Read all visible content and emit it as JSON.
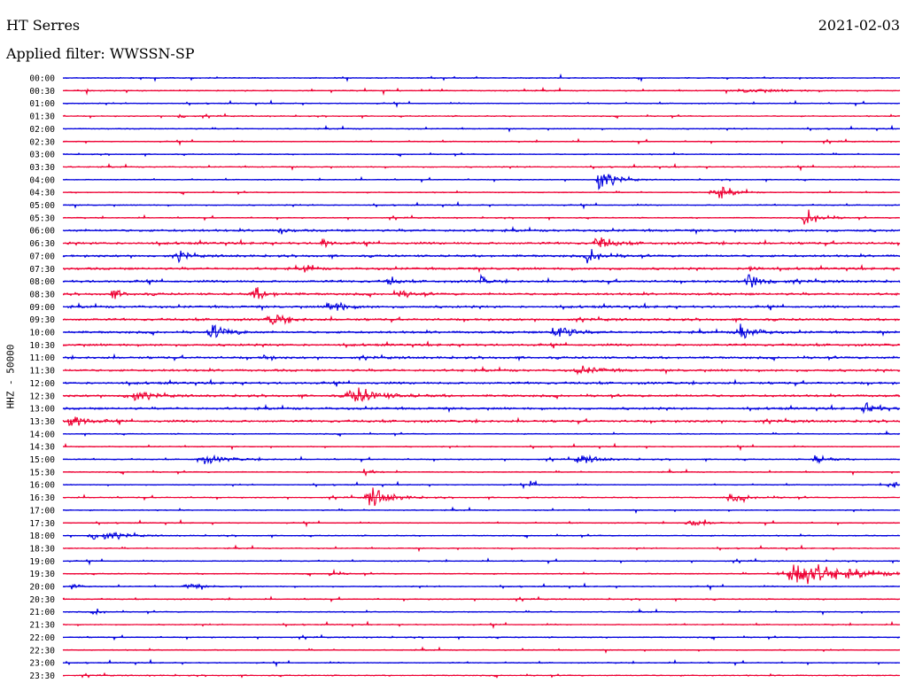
{
  "header": {
    "station": "HT Serres",
    "date": "2021-02-03",
    "filter_label": "Applied filter: WWSSN-SP",
    "channel_label": "HHZ - 50000"
  },
  "colors": {
    "even": "#0000dd",
    "odd": "#ee0033",
    "text": "#000000"
  },
  "chart_data": {
    "type": "line",
    "title": "HT Serres",
    "subtitle": "Applied filter: WWSSN-SP",
    "ylabel": "HHZ - 50000",
    "rows": [
      "00:00",
      "00:30",
      "01:00",
      "01:30",
      "02:00",
      "02:30",
      "03:00",
      "03:30",
      "04:00",
      "04:30",
      "05:00",
      "05:30",
      "06:00",
      "06:30",
      "07:00",
      "07:30",
      "08:00",
      "08:30",
      "09:00",
      "09:30",
      "10:00",
      "10:30",
      "11:00",
      "11:30",
      "12:00",
      "12:30",
      "13:00",
      "13:30",
      "14:00",
      "14:30",
      "15:00",
      "15:30",
      "16:00",
      "16:30",
      "17:00",
      "17:30",
      "18:00",
      "18:30",
      "19:00",
      "19:30",
      "20:00",
      "20:30",
      "21:00",
      "21:30",
      "22:00",
      "22:30",
      "23:00",
      "23:30"
    ],
    "row_minutes": 30,
    "events": [
      {
        "row": 1,
        "t": 0.82,
        "a": 3,
        "w": 0.06
      },
      {
        "row": 3,
        "t": 0.14,
        "a": 4,
        "w": 0.01
      },
      {
        "row": 8,
        "t": 0.64,
        "a": 18,
        "w": 0.02
      },
      {
        "row": 9,
        "t": 0.78,
        "a": 13,
        "w": 0.02
      },
      {
        "row": 11,
        "t": 0.89,
        "a": 15,
        "w": 0.02
      },
      {
        "row": 12,
        "t": 0.26,
        "a": 6,
        "w": 0.01
      },
      {
        "row": 13,
        "t": 0.31,
        "a": 10,
        "w": 0.01
      },
      {
        "row": 13,
        "t": 0.64,
        "a": 12,
        "w": 0.02
      },
      {
        "row": 14,
        "t": 0.14,
        "a": 8,
        "w": 0.01
      },
      {
        "row": 14,
        "t": 0.63,
        "a": 12,
        "w": 0.02
      },
      {
        "row": 15,
        "t": 0.29,
        "a": 8,
        "w": 0.01
      },
      {
        "row": 15,
        "t": 0.82,
        "a": 9,
        "w": 0.01
      },
      {
        "row": 16,
        "t": 0.39,
        "a": 9,
        "w": 0.01
      },
      {
        "row": 16,
        "t": 0.5,
        "a": 8,
        "w": 0.01
      },
      {
        "row": 16,
        "t": 0.82,
        "a": 16,
        "w": 0.02
      },
      {
        "row": 17,
        "t": 0.06,
        "a": 6,
        "w": 0.02
      },
      {
        "row": 17,
        "t": 0.23,
        "a": 10,
        "w": 0.02
      },
      {
        "row": 17,
        "t": 0.4,
        "a": 7,
        "w": 0.02
      },
      {
        "row": 18,
        "t": 0.32,
        "a": 12,
        "w": 0.02
      },
      {
        "row": 19,
        "t": 0.25,
        "a": 12,
        "w": 0.02
      },
      {
        "row": 20,
        "t": 0.18,
        "a": 14,
        "w": 0.02
      },
      {
        "row": 20,
        "t": 0.59,
        "a": 16,
        "w": 0.02
      },
      {
        "row": 20,
        "t": 0.81,
        "a": 14,
        "w": 0.02
      },
      {
        "row": 22,
        "t": 0.24,
        "a": 6,
        "w": 0.01
      },
      {
        "row": 23,
        "t": 0.62,
        "a": 6,
        "w": 0.03
      },
      {
        "row": 25,
        "t": 0.08,
        "a": 11,
        "w": 0.02
      },
      {
        "row": 25,
        "t": 0.35,
        "a": 13,
        "w": 0.04
      },
      {
        "row": 26,
        "t": 0.96,
        "a": 10,
        "w": 0.02
      },
      {
        "row": 27,
        "t": 0.01,
        "a": 14,
        "w": 0.02
      },
      {
        "row": 30,
        "t": 0.17,
        "a": 6,
        "w": 0.04
      },
      {
        "row": 30,
        "t": 0.62,
        "a": 6,
        "w": 0.03
      },
      {
        "row": 30,
        "t": 0.9,
        "a": 7,
        "w": 0.02
      },
      {
        "row": 31,
        "t": 0.36,
        "a": 8,
        "w": 0.01
      },
      {
        "row": 32,
        "t": 0.56,
        "a": 7,
        "w": 0.01
      },
      {
        "row": 32,
        "t": 0.99,
        "a": 6,
        "w": 0.02
      },
      {
        "row": 33,
        "t": 0.37,
        "a": 14,
        "w": 0.03
      },
      {
        "row": 33,
        "t": 0.8,
        "a": 6,
        "w": 0.03
      },
      {
        "row": 35,
        "t": 0.75,
        "a": 8,
        "w": 0.02
      },
      {
        "row": 36,
        "t": 0.04,
        "a": 9,
        "w": 0.03
      },
      {
        "row": 39,
        "t": 0.32,
        "a": 8,
        "w": 0.01
      },
      {
        "row": 39,
        "t": 0.88,
        "a": 20,
        "w": 0.07
      },
      {
        "row": 40,
        "t": 0.01,
        "a": 7,
        "w": 0.01
      },
      {
        "row": 40,
        "t": 0.15,
        "a": 5,
        "w": 0.02
      },
      {
        "row": 42,
        "t": 0.04,
        "a": 6,
        "w": 0.01
      }
    ]
  }
}
